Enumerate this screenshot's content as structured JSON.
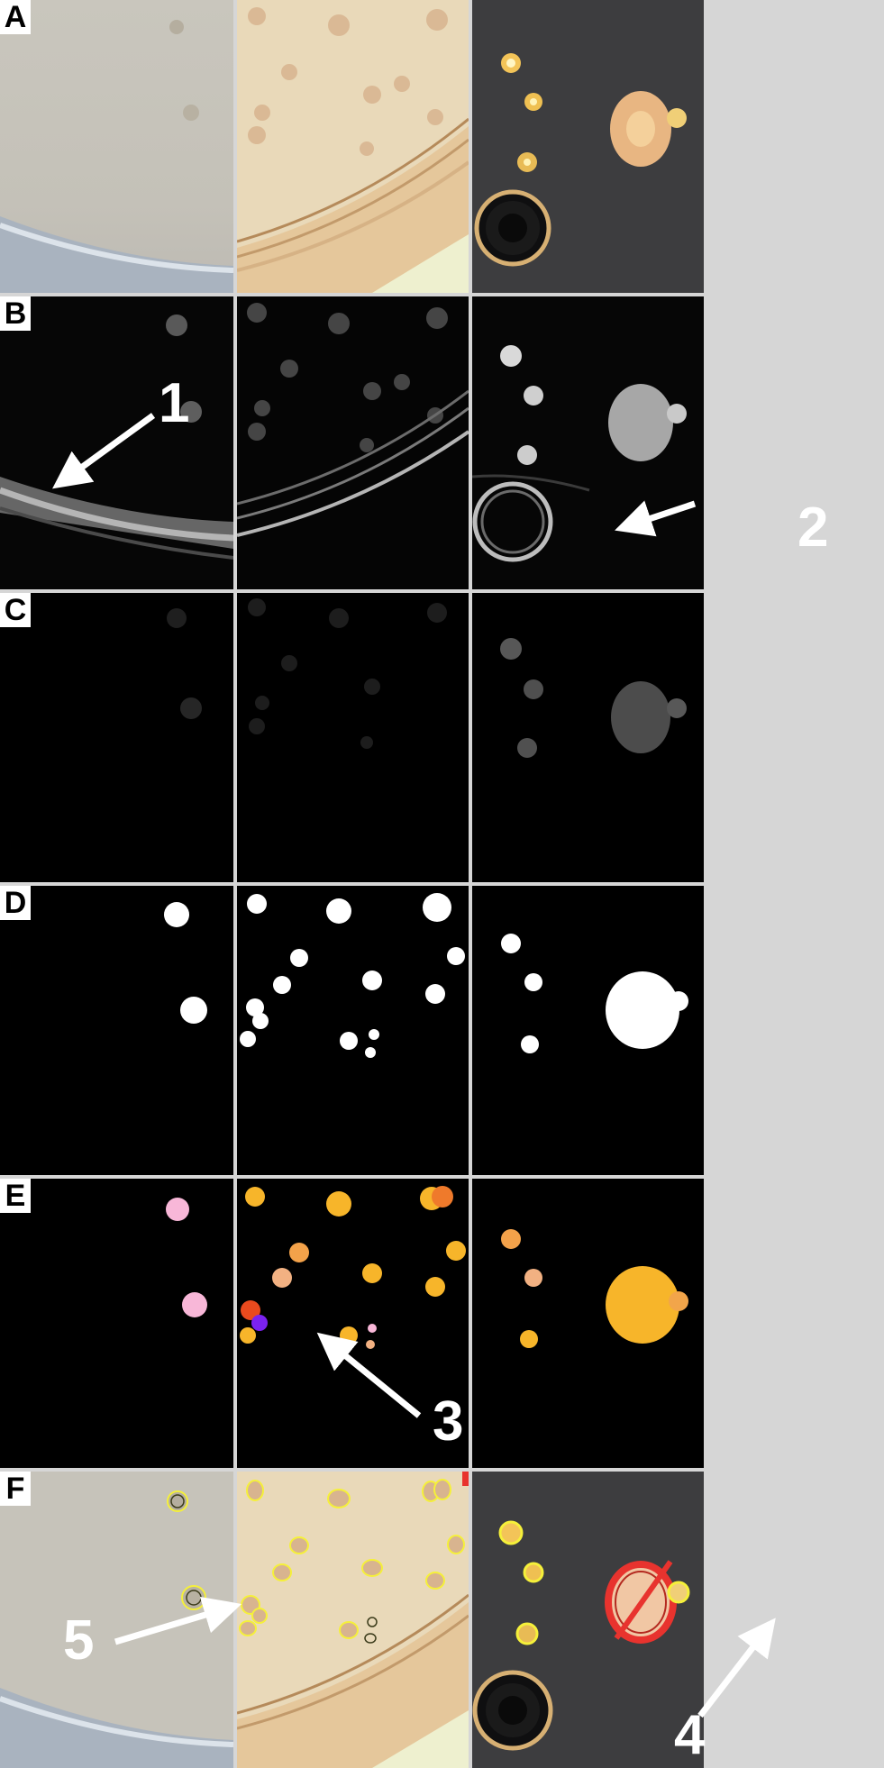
{
  "rows": [
    {
      "id": "A",
      "label": "A"
    },
    {
      "id": "B",
      "label": "B"
    },
    {
      "id": "C",
      "label": "C"
    },
    {
      "id": "D",
      "label": "D"
    },
    {
      "id": "E",
      "label": "E"
    },
    {
      "id": "F",
      "label": "F"
    }
  ],
  "callouts": [
    {
      "id": "1",
      "label": "1"
    },
    {
      "id": "2",
      "label": "2"
    },
    {
      "id": "3",
      "label": "3"
    },
    {
      "id": "4",
      "label": "4"
    },
    {
      "id": "5",
      "label": "5"
    }
  ],
  "colors": {
    "background_gray": "#d6d6d6",
    "colony_outline": "#f5f03a",
    "excluded_marker": "#e8332e",
    "mask_white": "#ffffff",
    "segment_orange": "#f7b52a",
    "segment_pink": "#f8b7d8",
    "segment_purple": "#7b22f0",
    "segment_red": "#ea4a1e"
  }
}
